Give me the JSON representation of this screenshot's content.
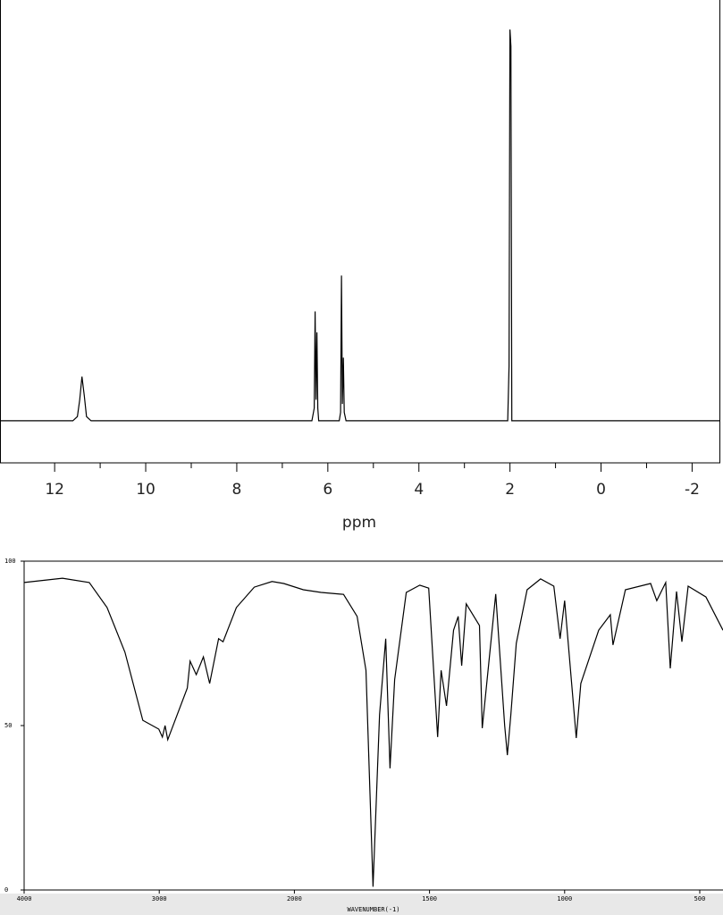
{
  "chart_data": [
    {
      "type": "line",
      "x_label": "ppm",
      "xlim": [
        13.2,
        -2.6
      ],
      "ylim": [
        -10,
        100
      ],
      "xticks": [
        12,
        10,
        8,
        6,
        4,
        2,
        0,
        -2
      ],
      "minor_xticks": [
        11,
        9,
        7,
        5,
        3,
        1,
        -1
      ],
      "color": "#000000",
      "x": [
        13.2,
        11.6,
        11.5,
        11.45,
        11.4,
        11.35,
        11.3,
        11.2,
        6.35,
        6.3,
        6.28,
        6.26,
        6.24,
        6.22,
        6.2,
        5.75,
        5.72,
        5.7,
        5.68,
        5.66,
        5.64,
        5.6,
        2.05,
        2.02,
        2.0,
        1.98,
        1.96,
        1.9,
        -2.6
      ],
      "values": [
        0,
        0,
        1,
        5,
        10.5,
        6,
        1,
        0,
        0,
        3,
        26,
        5,
        21,
        3,
        0,
        0,
        2,
        34.5,
        4,
        15,
        2,
        0,
        0,
        13,
        93,
        89,
        0,
        0,
        0
      ]
    },
    {
      "type": "line",
      "x_label": "WAVENUMBER(-1)",
      "xscale": "piecewise",
      "xlim": [
        4000,
        414
      ],
      "ylim": [
        0,
        100
      ],
      "xticks": [
        4000,
        3000,
        2000,
        1500,
        1000,
        500
      ],
      "yticks": [
        100,
        50,
        0
      ],
      "color": "#000000",
      "x": [
        4000,
        3716,
        3518,
        3386,
        3254,
        3122,
        3003,
        2977,
        2957,
        2937,
        2792,
        2772,
        2726,
        2673,
        2627,
        2561,
        2528,
        2429,
        2297,
        2165,
        2079,
        1967,
        1901,
        1818,
        1768,
        1735,
        1709,
        1685,
        1662,
        1646,
        1629,
        1586,
        1536,
        1503,
        1470,
        1457,
        1437,
        1411,
        1394,
        1381,
        1364,
        1315,
        1305,
        1255,
        1222,
        1212,
        1199,
        1179,
        1139,
        1089,
        1040,
        1017,
        1000,
        957,
        940,
        874,
        831,
        821,
        775,
        682,
        659,
        626,
        609,
        586,
        566,
        543,
        477,
        414
      ],
      "values": [
        93.5,
        94.8,
        93.5,
        85.9,
        72.3,
        51.6,
        48.9,
        46.5,
        50,
        45.7,
        61.4,
        69.6,
        65.5,
        70.9,
        62.8,
        76.4,
        75.5,
        85.9,
        92.1,
        93.8,
        93.2,
        91.3,
        90.5,
        89.9,
        83.2,
        66.8,
        1,
        53.3,
        76.4,
        37,
        64,
        90.5,
        92.7,
        91.8,
        46.5,
        66.8,
        56,
        79,
        83.2,
        68.2,
        87,
        80.4,
        49.2,
        90,
        50,
        41,
        53.3,
        75,
        91.3,
        94.6,
        92.4,
        76.4,
        88,
        46.2,
        62.8,
        79,
        83.7,
        74.5,
        91.3,
        93.2,
        88,
        93.5,
        67.4,
        90.8,
        75.5,
        92.4,
        89.1,
        79
      ]
    }
  ]
}
